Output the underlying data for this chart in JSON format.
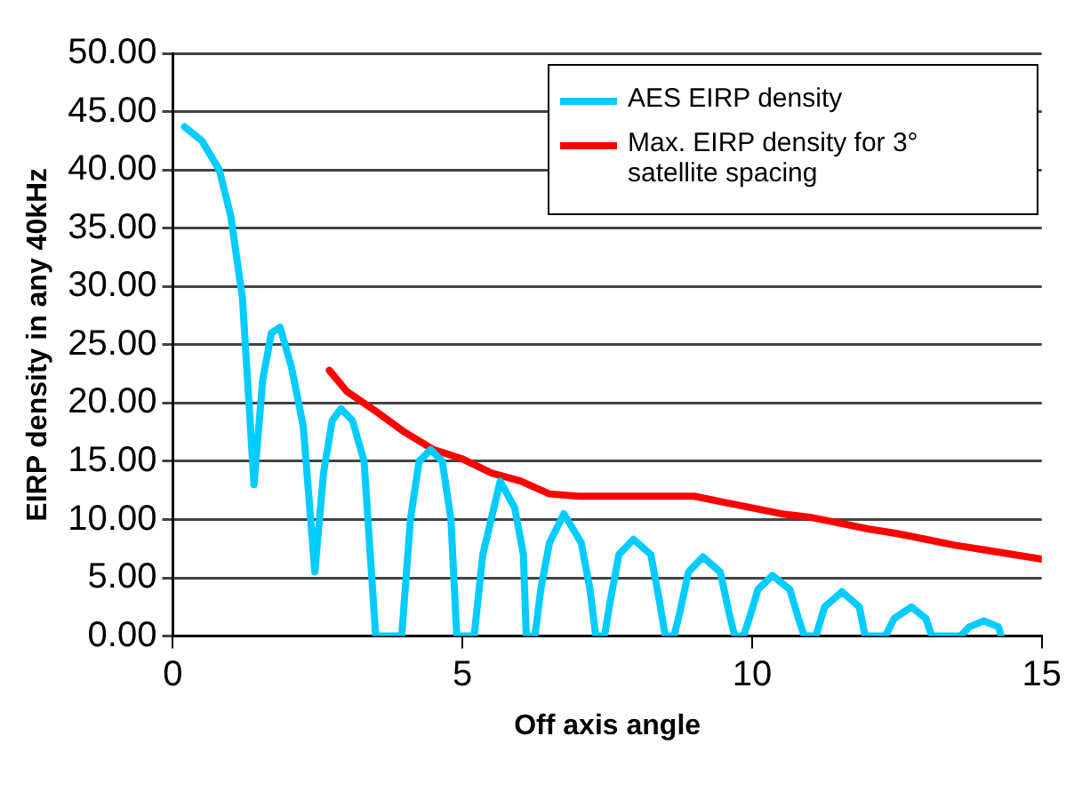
{
  "chart_data": {
    "type": "line",
    "xlabel": "Off axis angle",
    "ylabel": "EIRP density in any 40kHz",
    "xlim": [
      0,
      15
    ],
    "xticks": [
      0,
      5,
      10,
      15
    ],
    "ylim": [
      0,
      50
    ],
    "yticks": [
      {
        "value": 0,
        "label": "0.00"
      },
      {
        "value": 5,
        "label": "5.00"
      },
      {
        "value": 10,
        "label": "10.00"
      },
      {
        "value": 15,
        "label": "15.00"
      },
      {
        "value": 20,
        "label": "20.00"
      },
      {
        "value": 25,
        "label": "25.00"
      },
      {
        "value": 30,
        "label": "30.00"
      },
      {
        "value": 35,
        "label": "35.00"
      },
      {
        "value": 40,
        "label": "40.00"
      },
      {
        "value": 45,
        "label": "45.00"
      },
      {
        "value": 50,
        "label": "50.00"
      }
    ],
    "grid": "y",
    "legend": "top right",
    "marker": "none",
    "line_style": "solid",
    "series": [
      {
        "name": "AES EIRP density",
        "color": "#00ccff",
        "x": [
          0.2,
          0.5,
          0.8,
          1.0,
          1.2,
          1.4,
          1.55,
          1.7,
          1.85,
          2.05,
          2.25,
          2.45,
          2.6,
          2.75,
          2.9,
          3.1,
          3.3,
          3.5,
          3.65,
          3.75,
          3.95,
          4.1,
          4.25,
          4.45,
          4.65,
          4.8,
          4.9,
          5.05,
          5.2,
          5.35,
          5.65,
          5.9,
          6.05,
          6.1,
          6.25,
          6.35,
          6.5,
          6.75,
          7.05,
          7.2,
          7.3,
          7.45,
          7.55,
          7.7,
          7.95,
          8.25,
          8.4,
          8.5,
          8.65,
          8.75,
          8.9,
          9.15,
          9.45,
          9.6,
          9.7,
          9.85,
          9.95,
          10.1,
          10.35,
          10.65,
          10.8,
          10.9,
          11.1,
          11.25,
          11.55,
          11.85,
          11.95,
          12.3,
          12.45,
          12.75,
          13.0,
          13.1,
          13.6,
          13.75,
          14.0,
          14.25,
          14.3
        ],
        "values": [
          43.7,
          42.5,
          40,
          36,
          29,
          13,
          22,
          26,
          26.5,
          23,
          18,
          5.5,
          14,
          18.5,
          19.5,
          18.5,
          15,
          0,
          0,
          0,
          0,
          10,
          15,
          16,
          15,
          10,
          0,
          0,
          0,
          7,
          13.3,
          11,
          7,
          0,
          0,
          4,
          8,
          10.5,
          8,
          4,
          0,
          0,
          3,
          7,
          8.3,
          7,
          3,
          0,
          0,
          2,
          5.5,
          6.8,
          5.5,
          2,
          0,
          0,
          1.5,
          4,
          5.2,
          4,
          1.5,
          0,
          0,
          2.5,
          3.8,
          2.5,
          0,
          0,
          1.5,
          2.5,
          1.5,
          0,
          0,
          0.8,
          1.3,
          0.8,
          0
        ]
      },
      {
        "name": "Max. EIRP density for 3° satellite spacing",
        "color": "#ff0000",
        "x": [
          2.7,
          3.0,
          3.5,
          4.0,
          4.5,
          5.0,
          5.5,
          6.0,
          6.5,
          7.0,
          8.0,
          9.0,
          9.5,
          10.0,
          10.5,
          11.0,
          11.5,
          12.0,
          12.5,
          13.0,
          13.5,
          14.0,
          14.5,
          15.0
        ],
        "values": [
          22.8,
          21,
          19.3,
          17.5,
          16,
          15.2,
          14,
          13.3,
          12.2,
          12,
          12,
          12,
          11.5,
          11,
          10.5,
          10.2,
          9.7,
          9.2,
          8.8,
          8.3,
          7.8,
          7.4,
          7,
          6.6
        ]
      }
    ]
  }
}
